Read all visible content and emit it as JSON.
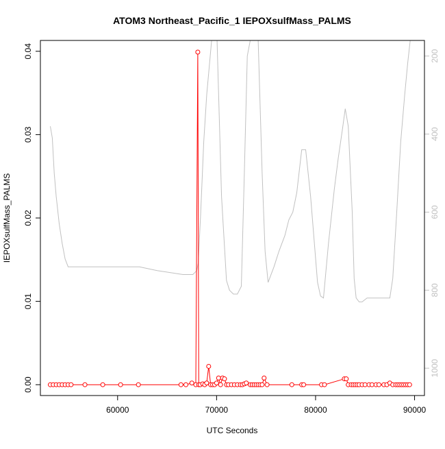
{
  "chart_data": {
    "type": "line",
    "title": "ATOM3 Northeast_Pacific_1 IEPOXsulfMass_PALMS",
    "xlabel": "UTC Seconds",
    "ylabel": "IEPOXsulfMass_PALMS",
    "xlim": [
      52200,
      91000
    ],
    "ylim": [
      -0.0013,
      0.0413
    ],
    "y2lim": [
      1070,
      160
    ],
    "y2_reversed": true,
    "x_ticks": [
      60000,
      70000,
      80000,
      90000
    ],
    "x_tick_labels": [
      "60000",
      "70000",
      "80000",
      "90000"
    ],
    "y_ticks": [
      0.0,
      0.01,
      0.02,
      0.03,
      0.04
    ],
    "y_tick_labels": [
      "0.00",
      "0.01",
      "0.02",
      "0.03",
      "0.04"
    ],
    "y2_ticks": [
      200,
      400,
      600,
      800,
      1000
    ],
    "y2_tick_labels": [
      "200",
      "400",
      "600",
      "800",
      "1000"
    ],
    "grid": false,
    "series": [
      {
        "color": "#ff0000",
        "style": "line+circles",
        "axis": "left",
        "x": [
          53200,
          53500,
          53800,
          54100,
          54400,
          54700,
          55000,
          55300,
          56700,
          58500,
          60300,
          62100,
          66400,
          66900,
          67500,
          67900,
          68100,
          68200,
          68350,
          68600,
          68800,
          69000,
          69200,
          69400,
          69600,
          69800,
          70000,
          70200,
          70400,
          70600,
          70800,
          71000,
          71200,
          71500,
          71800,
          72100,
          72400,
          72600,
          72800,
          73000,
          73400,
          73600,
          73800,
          74000,
          74200,
          74400,
          74600,
          74800,
          75100,
          77600,
          78600,
          78800,
          80600,
          80900,
          82900,
          83100,
          83300,
          83600,
          83800,
          84000,
          84200,
          84400,
          84700,
          85000,
          85400,
          85700,
          86100,
          86400,
          86900,
          87200,
          87500,
          87800,
          88100,
          88300,
          88500,
          88700,
          88900,
          89100,
          89300,
          89500
        ],
        "y": [
          0,
          0,
          0,
          0,
          0,
          0,
          0,
          0,
          0,
          0,
          0,
          0,
          0,
          0,
          0.0002,
          0,
          0.0399,
          0,
          0,
          0.0001,
          0,
          0.0002,
          0.0022,
          0,
          0,
          0,
          0.0002,
          0.0008,
          0,
          0.0008,
          0.0007,
          0,
          0,
          0,
          0,
          0,
          0,
          0,
          0.0001,
          0.0002,
          0,
          0,
          0,
          0,
          0,
          0,
          0,
          0.0008,
          0,
          0,
          0,
          0,
          0,
          0,
          0.0007,
          0.0007,
          0,
          0,
          0,
          0,
          0,
          0,
          0,
          0,
          0,
          0,
          0,
          0,
          0,
          0,
          0.0002,
          0,
          0,
          0,
          0,
          0,
          0,
          0,
          0,
          0
        ]
      },
      {
        "color": "#c0c0c0",
        "style": "line",
        "axis": "right",
        "x": [
          53200,
          53400,
          53600,
          53800,
          54100,
          54400,
          54700,
          55000,
          60000,
          62200,
          64000,
          66600,
          67600,
          68000,
          68150,
          68400,
          68700,
          69000,
          69500,
          70000,
          70500,
          71000,
          71300,
          71700,
          72100,
          72500,
          72800,
          73100,
          73400,
          73700,
          74000,
          74200,
          74600,
          74900,
          75200,
          75800,
          76300,
          76900,
          77300,
          77700,
          78100,
          78600,
          79000,
          79500,
          80200,
          80500,
          80800,
          81300,
          81900,
          82300,
          82700,
          83000,
          83300,
          83700,
          83900,
          84100,
          84400,
          84700,
          85200,
          85800,
          86400,
          87000,
          87500,
          87800,
          88200,
          88600,
          89000,
          89300,
          89600
        ],
        "y": [
          380,
          410,
          500,
          560,
          630,
          680,
          720,
          740,
          740,
          740,
          750,
          760,
          760,
          750,
          730,
          600,
          420,
          300,
          160,
          120,
          560,
          775,
          800,
          810,
          810,
          790,
          500,
          200,
          160,
          120,
          100,
          160,
          500,
          700,
          780,
          740,
          700,
          660,
          620,
          600,
          550,
          440,
          440,
          560,
          780,
          815,
          820,
          680,
          540,
          460,
          390,
          335,
          380,
          600,
          770,
          820,
          830,
          830,
          820,
          820,
          820,
          820,
          820,
          770,
          600,
          420,
          300,
          220,
          150
        ]
      }
    ]
  }
}
